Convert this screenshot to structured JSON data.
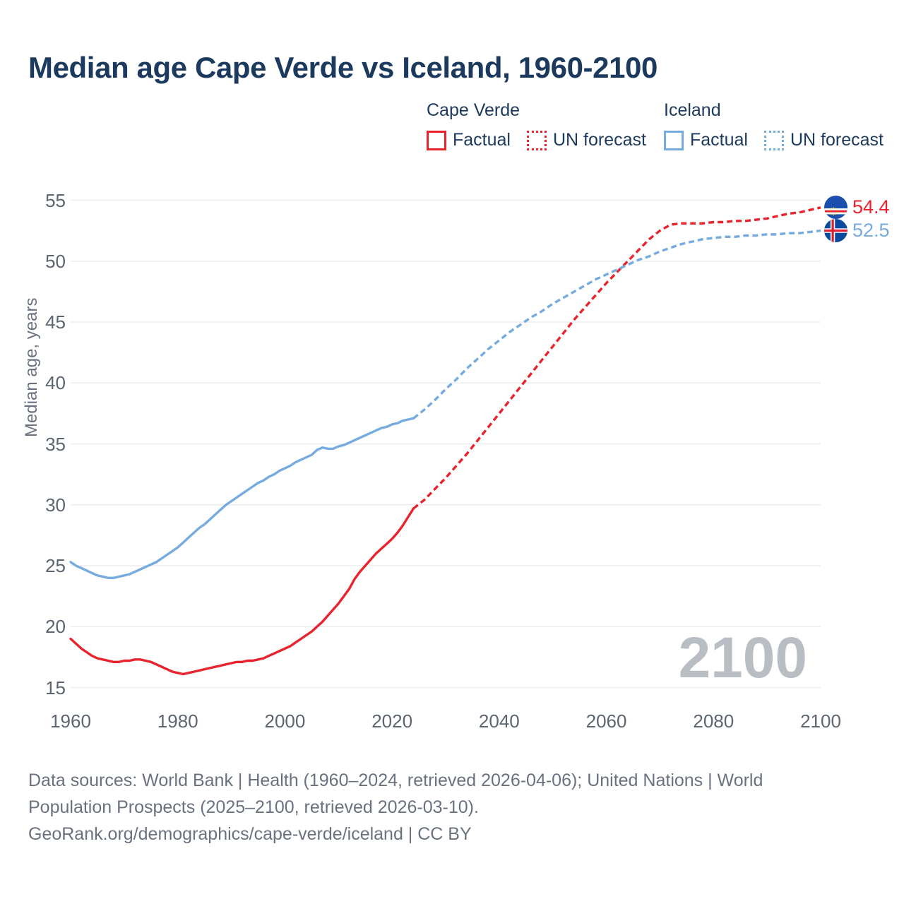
{
  "colors": {
    "cape_verde": "#e8232d",
    "iceland": "#75abdf",
    "title_text": "#1b3a5e",
    "axis_text": "#5d6570",
    "muted_text": "#6a7280",
    "gridline": "#e9eaec",
    "watermark": "#b9bec4"
  },
  "header": {
    "title": "Median age Cape Verde vs Iceland, 1960-2100"
  },
  "legend": {
    "groups": [
      {
        "label": "Cape Verde",
        "color": "#e8232d",
        "items": [
          {
            "label": "Factual",
            "style": "solid"
          },
          {
            "label": "UN forecast",
            "style": "dotted"
          }
        ]
      },
      {
        "label": "Iceland",
        "color": "#75abdf",
        "items": [
          {
            "label": "Factual",
            "style": "solid"
          },
          {
            "label": "UN forecast",
            "style": "dotted"
          }
        ]
      }
    ]
  },
  "chart_data": {
    "type": "line",
    "title": "Median age Cape Verde vs Iceland, 1960-2100",
    "xlabel": "",
    "ylabel": "Median age, years",
    "xlim": [
      1960,
      2100
    ],
    "ylim": [
      15,
      55
    ],
    "x_ticks": [
      1960,
      1980,
      2000,
      2020,
      2040,
      2060,
      2080,
      2100
    ],
    "y_ticks": [
      15,
      20,
      25,
      30,
      35,
      40,
      45,
      50,
      55
    ],
    "grid": "horizontal",
    "legend_position": "top",
    "watermark": "2100",
    "series": [
      {
        "name": "Cape Verde — Factual",
        "color": "#e8232d",
        "style": "solid",
        "points": [
          [
            1960,
            19.0
          ],
          [
            1961,
            18.6
          ],
          [
            1962,
            18.2
          ],
          [
            1963,
            17.9
          ],
          [
            1964,
            17.6
          ],
          [
            1965,
            17.4
          ],
          [
            1966,
            17.3
          ],
          [
            1967,
            17.2
          ],
          [
            1968,
            17.1
          ],
          [
            1969,
            17.1
          ],
          [
            1970,
            17.2
          ],
          [
            1971,
            17.2
          ],
          [
            1972,
            17.3
          ],
          [
            1973,
            17.3
          ],
          [
            1974,
            17.2
          ],
          [
            1975,
            17.1
          ],
          [
            1976,
            16.9
          ],
          [
            1977,
            16.7
          ],
          [
            1978,
            16.5
          ],
          [
            1979,
            16.3
          ],
          [
            1980,
            16.2
          ],
          [
            1981,
            16.1
          ],
          [
            1982,
            16.2
          ],
          [
            1983,
            16.3
          ],
          [
            1984,
            16.4
          ],
          [
            1985,
            16.5
          ],
          [
            1986,
            16.6
          ],
          [
            1987,
            16.7
          ],
          [
            1988,
            16.8
          ],
          [
            1989,
            16.9
          ],
          [
            1990,
            17.0
          ],
          [
            1991,
            17.1
          ],
          [
            1992,
            17.1
          ],
          [
            1993,
            17.2
          ],
          [
            1994,
            17.2
          ],
          [
            1995,
            17.3
          ],
          [
            1996,
            17.4
          ],
          [
            1997,
            17.6
          ],
          [
            1998,
            17.8
          ],
          [
            1999,
            18.0
          ],
          [
            2000,
            18.2
          ],
          [
            2001,
            18.4
          ],
          [
            2002,
            18.7
          ],
          [
            2003,
            19.0
          ],
          [
            2004,
            19.3
          ],
          [
            2005,
            19.6
          ],
          [
            2006,
            20.0
          ],
          [
            2007,
            20.4
          ],
          [
            2008,
            20.9
          ],
          [
            2009,
            21.4
          ],
          [
            2010,
            21.9
          ],
          [
            2011,
            22.5
          ],
          [
            2012,
            23.1
          ],
          [
            2013,
            23.9
          ],
          [
            2014,
            24.5
          ],
          [
            2015,
            25.0
          ],
          [
            2016,
            25.5
          ],
          [
            2017,
            26.0
          ],
          [
            2018,
            26.4
          ],
          [
            2019,
            26.8
          ],
          [
            2020,
            27.2
          ],
          [
            2021,
            27.7
          ],
          [
            2022,
            28.3
          ],
          [
            2023,
            29.0
          ],
          [
            2024,
            29.7
          ]
        ]
      },
      {
        "name": "Cape Verde — UN forecast",
        "color": "#e8232d",
        "style": "dashed",
        "points": [
          [
            2024,
            29.7
          ],
          [
            2026,
            30.4
          ],
          [
            2028,
            31.3
          ],
          [
            2030,
            32.2
          ],
          [
            2032,
            33.2
          ],
          [
            2034,
            34.2
          ],
          [
            2036,
            35.3
          ],
          [
            2038,
            36.4
          ],
          [
            2040,
            37.5
          ],
          [
            2042,
            38.6
          ],
          [
            2044,
            39.7
          ],
          [
            2046,
            40.8
          ],
          [
            2048,
            41.9
          ],
          [
            2050,
            43.0
          ],
          [
            2052,
            44.1
          ],
          [
            2054,
            45.2
          ],
          [
            2056,
            46.2
          ],
          [
            2058,
            47.2
          ],
          [
            2060,
            48.2
          ],
          [
            2062,
            49.1
          ],
          [
            2064,
            50.0
          ],
          [
            2066,
            50.9
          ],
          [
            2068,
            51.8
          ],
          [
            2070,
            52.5
          ],
          [
            2072,
            53.0
          ],
          [
            2074,
            53.1
          ],
          [
            2076,
            53.1
          ],
          [
            2078,
            53.1
          ],
          [
            2080,
            53.2
          ],
          [
            2082,
            53.2
          ],
          [
            2084,
            53.3
          ],
          [
            2086,
            53.3
          ],
          [
            2088,
            53.4
          ],
          [
            2090,
            53.5
          ],
          [
            2092,
            53.7
          ],
          [
            2094,
            53.9
          ],
          [
            2096,
            54.0
          ],
          [
            2098,
            54.2
          ],
          [
            2100,
            54.4
          ]
        ]
      },
      {
        "name": "Iceland — Factual",
        "color": "#75abdf",
        "style": "solid",
        "points": [
          [
            1960,
            25.3
          ],
          [
            1961,
            25.0
          ],
          [
            1962,
            24.8
          ],
          [
            1963,
            24.6
          ],
          [
            1964,
            24.4
          ],
          [
            1965,
            24.2
          ],
          [
            1966,
            24.1
          ],
          [
            1967,
            24.0
          ],
          [
            1968,
            24.0
          ],
          [
            1969,
            24.1
          ],
          [
            1970,
            24.2
          ],
          [
            1971,
            24.3
          ],
          [
            1972,
            24.5
          ],
          [
            1973,
            24.7
          ],
          [
            1974,
            24.9
          ],
          [
            1975,
            25.1
          ],
          [
            1976,
            25.3
          ],
          [
            1977,
            25.6
          ],
          [
            1978,
            25.9
          ],
          [
            1979,
            26.2
          ],
          [
            1980,
            26.5
          ],
          [
            1981,
            26.9
          ],
          [
            1982,
            27.3
          ],
          [
            1983,
            27.7
          ],
          [
            1984,
            28.1
          ],
          [
            1985,
            28.4
          ],
          [
            1986,
            28.8
          ],
          [
            1987,
            29.2
          ],
          [
            1988,
            29.6
          ],
          [
            1989,
            30.0
          ],
          [
            1990,
            30.3
          ],
          [
            1991,
            30.6
          ],
          [
            1992,
            30.9
          ],
          [
            1993,
            31.2
          ],
          [
            1994,
            31.5
          ],
          [
            1995,
            31.8
          ],
          [
            1996,
            32.0
          ],
          [
            1997,
            32.3
          ],
          [
            1998,
            32.5
          ],
          [
            1999,
            32.8
          ],
          [
            2000,
            33.0
          ],
          [
            2001,
            33.2
          ],
          [
            2002,
            33.5
          ],
          [
            2003,
            33.7
          ],
          [
            2004,
            33.9
          ],
          [
            2005,
            34.1
          ],
          [
            2006,
            34.5
          ],
          [
            2007,
            34.7
          ],
          [
            2008,
            34.6
          ],
          [
            2009,
            34.6
          ],
          [
            2010,
            34.8
          ],
          [
            2011,
            34.9
          ],
          [
            2012,
            35.1
          ],
          [
            2013,
            35.3
          ],
          [
            2014,
            35.5
          ],
          [
            2015,
            35.7
          ],
          [
            2016,
            35.9
          ],
          [
            2017,
            36.1
          ],
          [
            2018,
            36.3
          ],
          [
            2019,
            36.4
          ],
          [
            2020,
            36.6
          ],
          [
            2021,
            36.7
          ],
          [
            2022,
            36.9
          ],
          [
            2023,
            37.0
          ],
          [
            2024,
            37.1
          ]
        ]
      },
      {
        "name": "Iceland — UN forecast",
        "color": "#75abdf",
        "style": "dashed",
        "points": [
          [
            2024,
            37.1
          ],
          [
            2026,
            37.8
          ],
          [
            2028,
            38.6
          ],
          [
            2030,
            39.5
          ],
          [
            2032,
            40.3
          ],
          [
            2034,
            41.2
          ],
          [
            2036,
            42.0
          ],
          [
            2038,
            42.8
          ],
          [
            2040,
            43.5
          ],
          [
            2042,
            44.2
          ],
          [
            2044,
            44.8
          ],
          [
            2046,
            45.4
          ],
          [
            2048,
            45.9
          ],
          [
            2050,
            46.5
          ],
          [
            2052,
            47.0
          ],
          [
            2054,
            47.5
          ],
          [
            2056,
            48.0
          ],
          [
            2058,
            48.5
          ],
          [
            2060,
            48.9
          ],
          [
            2062,
            49.3
          ],
          [
            2064,
            49.7
          ],
          [
            2066,
            50.1
          ],
          [
            2068,
            50.4
          ],
          [
            2070,
            50.8
          ],
          [
            2072,
            51.1
          ],
          [
            2074,
            51.4
          ],
          [
            2076,
            51.6
          ],
          [
            2078,
            51.8
          ],
          [
            2080,
            51.9
          ],
          [
            2082,
            52.0
          ],
          [
            2084,
            52.0
          ],
          [
            2086,
            52.1
          ],
          [
            2088,
            52.1
          ],
          [
            2090,
            52.2
          ],
          [
            2092,
            52.2
          ],
          [
            2094,
            52.3
          ],
          [
            2096,
            52.3
          ],
          [
            2098,
            52.4
          ],
          [
            2100,
            52.5
          ]
        ]
      }
    ],
    "end_labels": [
      {
        "series": "Cape Verde",
        "value": "54.4",
        "flag": "cape-verde"
      },
      {
        "series": "Iceland",
        "value": "52.5",
        "flag": "iceland"
      }
    ]
  },
  "footer": {
    "line1": "Data sources: World Bank | Health (1960–2024, retrieved 2026-04-06); United Nations | World",
    "line2": "Population Prospects (2025–2100, retrieved 2026-03-10).",
    "line3": "GeoRank.org/demographics/cape-verde/iceland | CC BY"
  }
}
